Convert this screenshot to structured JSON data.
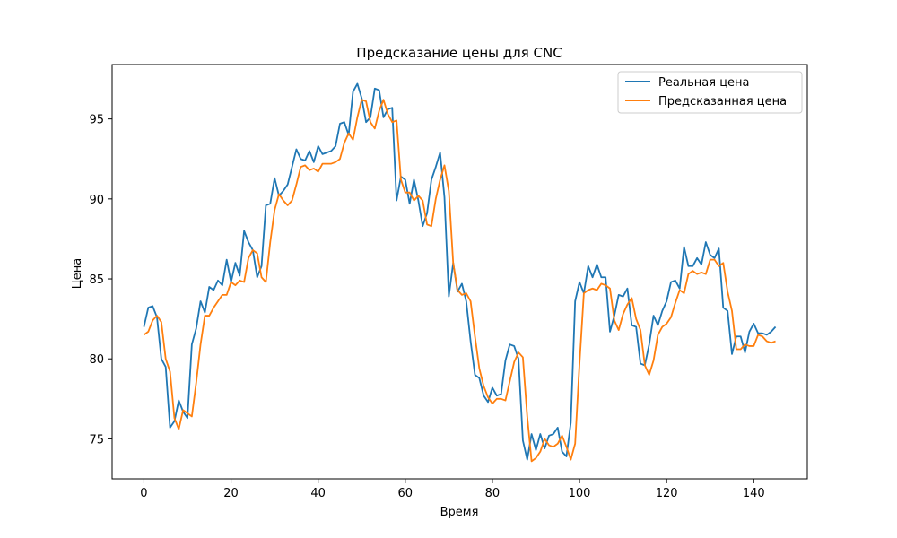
{
  "chart_data": {
    "type": "line",
    "title": "Предсказание цены для CNC",
    "xlabel": "Время",
    "ylabel": "Цена",
    "xlim": [
      -7.3,
      152.3
    ],
    "ylim": [
      72.5,
      98.4
    ],
    "x_ticks": [
      0,
      20,
      40,
      60,
      80,
      100,
      120,
      140
    ],
    "y_ticks": [
      75,
      80,
      85,
      90,
      95
    ],
    "grid": false,
    "legend_position": "top-right",
    "series": [
      {
        "name": "Реальная цена",
        "color": "#1f77b4",
        "values": [
          82.0,
          83.2,
          83.3,
          82.6,
          80.0,
          79.5,
          75.7,
          76.1,
          77.4,
          76.7,
          76.3,
          80.9,
          81.9,
          83.6,
          82.9,
          84.5,
          84.3,
          84.9,
          84.6,
          86.2,
          84.8,
          86.0,
          85.2,
          88.0,
          87.3,
          86.8,
          85.1,
          85.8,
          89.6,
          89.7,
          91.3,
          90.2,
          90.5,
          90.9,
          92.0,
          93.1,
          92.5,
          92.4,
          93.0,
          92.3,
          93.3,
          92.8,
          92.9,
          93.0,
          93.3,
          94.7,
          94.8,
          94.0,
          96.7,
          97.2,
          96.3,
          94.8,
          95.1,
          96.9,
          96.8,
          95.1,
          95.6,
          95.7,
          89.9,
          91.4,
          91.2,
          89.7,
          91.2,
          89.9,
          88.3,
          89.1,
          91.2,
          92.0,
          92.9,
          90.1,
          83.9,
          86.0,
          84.2,
          84.7,
          83.6,
          81.1,
          79.0,
          78.8,
          77.7,
          77.3,
          78.2,
          77.7,
          77.8,
          79.9,
          80.9,
          80.8,
          80.0,
          74.9,
          73.7,
          75.3,
          74.3,
          75.3,
          74.4,
          75.2,
          75.3,
          75.7,
          74.2,
          73.9,
          76.0,
          83.6,
          84.8,
          84.1,
          85.8,
          85.1,
          85.9,
          85.1,
          85.1,
          81.7,
          82.7,
          84.0,
          83.9,
          84.4,
          82.1,
          82.0,
          79.7,
          79.6,
          80.9,
          82.7,
          82.1,
          83.0,
          83.6,
          84.8,
          84.9,
          84.4,
          87.0,
          85.8,
          85.8,
          86.3,
          85.9,
          87.3,
          86.5,
          86.3,
          86.9,
          83.2,
          83.0,
          80.3,
          81.4,
          81.4,
          80.4,
          81.7,
          82.2,
          81.6,
          81.6,
          81.5,
          81.7,
          82.0
        ]
      },
      {
        "name": "Предсказанная цена",
        "color": "#ff7f0e",
        "values": [
          81.5,
          81.7,
          82.4,
          82.7,
          82.3,
          80.0,
          79.2,
          76.3,
          75.6,
          76.8,
          76.6,
          76.4,
          78.5,
          80.9,
          82.7,
          82.7,
          83.2,
          83.6,
          84.0,
          84.0,
          84.8,
          84.6,
          84.9,
          84.8,
          86.3,
          86.8,
          86.6,
          85.1,
          84.8,
          87.3,
          89.3,
          90.3,
          89.9,
          89.6,
          89.9,
          90.9,
          92.0,
          92.1,
          91.8,
          91.9,
          91.7,
          92.2,
          92.2,
          92.2,
          92.3,
          92.5,
          93.5,
          94.1,
          93.7,
          95.1,
          96.2,
          96.1,
          94.8,
          94.4,
          95.5,
          96.2,
          95.3,
          94.8,
          94.9,
          91.2,
          90.4,
          90.4,
          89.9,
          90.2,
          89.9,
          88.4,
          88.3,
          90.0,
          91.2,
          92.1,
          90.5,
          86.0,
          84.3,
          84.0,
          84.1,
          83.6,
          81.4,
          79.4,
          78.3,
          77.6,
          77.2,
          77.5,
          77.5,
          77.4,
          78.6,
          79.8,
          80.4,
          80.1,
          76.4,
          73.6,
          73.8,
          74.2,
          75.0,
          74.6,
          74.5,
          74.7,
          75.2,
          74.5,
          73.7,
          74.7,
          79.7,
          84.1,
          84.3,
          84.4,
          84.3,
          84.7,
          84.6,
          84.4,
          82.4,
          81.8,
          82.8,
          83.4,
          83.8,
          82.5,
          81.8,
          79.6,
          79.0,
          79.9,
          81.5,
          82.0,
          82.2,
          82.6,
          83.5,
          84.3,
          84.1,
          85.3,
          85.5,
          85.3,
          85.4,
          85.3,
          86.2,
          86.2,
          85.8,
          86.0,
          84.2,
          83.0,
          80.6,
          80.6,
          80.9,
          80.8,
          80.8,
          81.5,
          81.4,
          81.1,
          81.0,
          81.1
        ]
      }
    ]
  }
}
